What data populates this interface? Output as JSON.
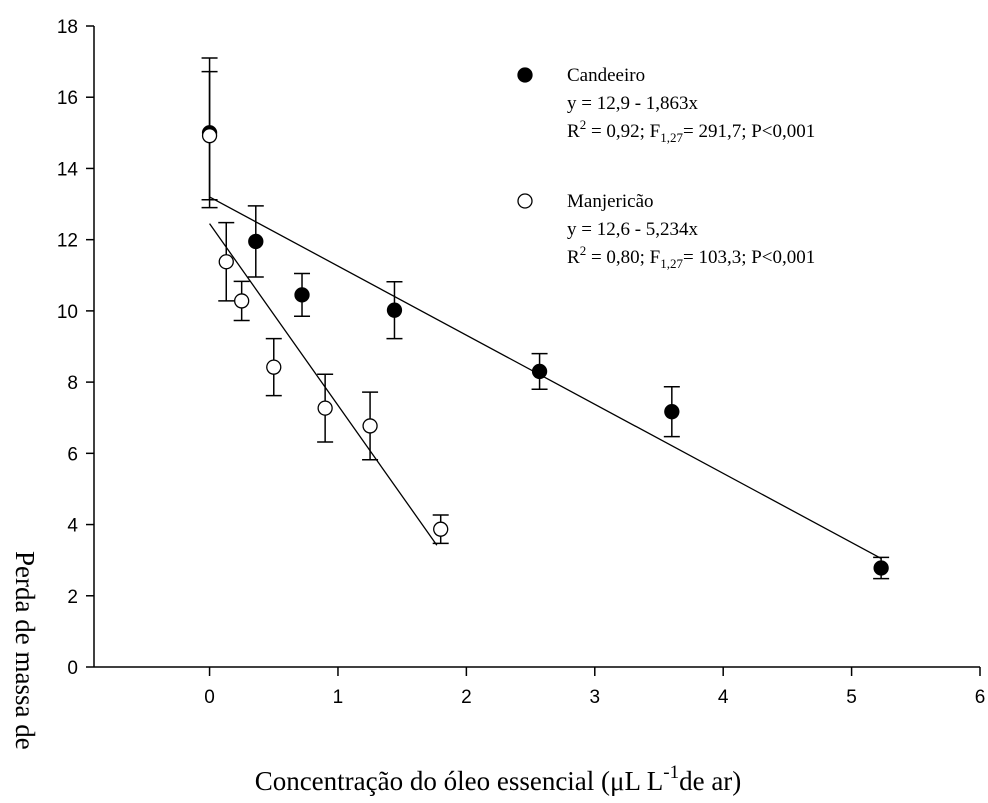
{
  "chart_data": {
    "type": "scatter",
    "title": "",
    "xlabel_parts": [
      "Concentração do óleo essencial (",
      "μ",
      "L L",
      "-1",
      "de ar)"
    ],
    "ylabel": "Perda de massa de",
    "xlim": [
      -0.9,
      6
    ],
    "ylim": [
      0,
      18
    ],
    "x_ticks": [
      0,
      1,
      2,
      3,
      4,
      5,
      6
    ],
    "y_ticks": [
      0,
      2,
      4,
      6,
      8,
      10,
      12,
      14,
      16,
      18
    ],
    "x_tick_labels": [
      "0",
      "1",
      "2",
      "3",
      "4",
      "5",
      "6"
    ],
    "y_tick_labels": [
      "0",
      "2",
      "4",
      "6",
      "8",
      "10",
      "12",
      "14",
      "16",
      "18"
    ],
    "grid": false,
    "legend_position": "top-right",
    "series": [
      {
        "name": "Candeeiro",
        "marker": "filled-circle",
        "color": "#000000",
        "x": [
          0,
          0.36,
          0.72,
          1.44,
          2.57,
          3.6,
          5.23
        ],
        "y": [
          15.0,
          11.95,
          10.45,
          10.02,
          8.3,
          7.17,
          2.78
        ],
        "err": [
          2.1,
          1.0,
          0.6,
          0.8,
          0.5,
          0.7,
          0.3
        ],
        "fit_line": {
          "x": [
            0,
            5.23
          ],
          "y": [
            13.2,
            3.05
          ]
        },
        "legend_lines": [
          {
            "main": "y = 12,9 - 1,863x"
          },
          {
            "main": "R",
            "sup": "2",
            "rest": " =  0,92; F",
            "sub": "1,27",
            "rest2": "= 291,7; P<0,001"
          }
        ]
      },
      {
        "name": "Manjericão",
        "marker": "open-circle",
        "color": "#000000",
        "x": [
          0,
          0.13,
          0.25,
          0.5,
          0.9,
          1.25,
          1.8
        ],
        "y": [
          14.92,
          11.38,
          10.28,
          8.42,
          7.27,
          6.77,
          3.87
        ],
        "err": [
          1.8,
          1.1,
          0.55,
          0.8,
          0.95,
          0.95,
          0.4
        ],
        "fit_line": {
          "x": [
            0,
            1.77
          ],
          "y": [
            12.45,
            3.42
          ]
        },
        "legend_lines": [
          {
            "main": "y = 12,6 - 5,234x"
          },
          {
            "main": "R",
            "sup": "2",
            "rest": " =   0,80; F",
            "sub": "1,27",
            "rest2": "= 103,3; P<0,001"
          }
        ]
      }
    ]
  }
}
